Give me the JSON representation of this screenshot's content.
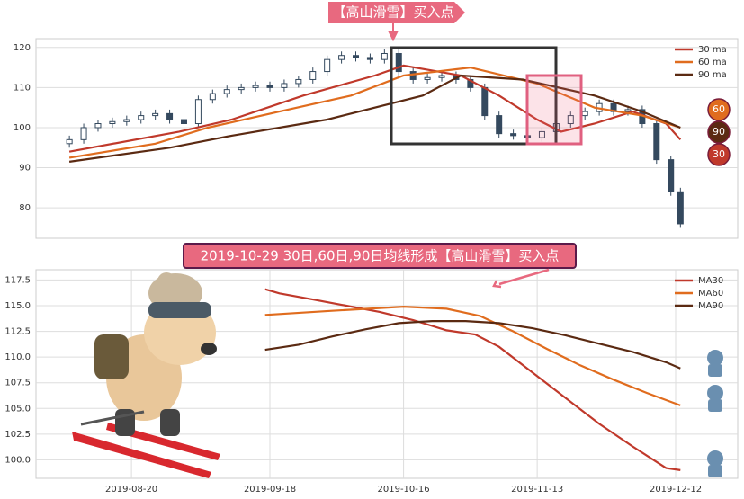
{
  "chart_data": [
    {
      "type": "candlestick",
      "annotation": "【高山滑雪】买入点",
      "xlim": [
        "2019-07-31",
        "2019-12-25"
      ],
      "ylim": [
        72.4,
        122.2
      ],
      "yticks": [
        80,
        90,
        100,
        110,
        120
      ],
      "grid": true,
      "legend": "upper right",
      "candle_color": "#34495e",
      "x": [
        "2019-08-07",
        "2019-08-10",
        "2019-08-13",
        "2019-08-16",
        "2019-08-19",
        "2019-08-22",
        "2019-08-25",
        "2019-08-28",
        "2019-08-31",
        "2019-09-03",
        "2019-09-06",
        "2019-09-09",
        "2019-09-12",
        "2019-09-15",
        "2019-09-18",
        "2019-09-21",
        "2019-09-24",
        "2019-09-27",
        "2019-09-30",
        "2019-10-03",
        "2019-10-06",
        "2019-10-09",
        "2019-10-12",
        "2019-10-15",
        "2019-10-18",
        "2019-10-21",
        "2019-10-24",
        "2019-10-27",
        "2019-10-30",
        "2019-11-02",
        "2019-11-05",
        "2019-11-08",
        "2019-11-11",
        "2019-11-14",
        "2019-11-17",
        "2019-11-20",
        "2019-11-23",
        "2019-11-26",
        "2019-11-29",
        "2019-12-02",
        "2019-12-05",
        "2019-12-08",
        "2019-12-11",
        "2019-12-13"
      ],
      "open": [
        96,
        97,
        100,
        101,
        101.5,
        102,
        103,
        103.5,
        102,
        101,
        107,
        108.5,
        109.5,
        110,
        110.5,
        110,
        111,
        112,
        114,
        117,
        118,
        117.5,
        117,
        118.5,
        114,
        112,
        112.5,
        113,
        112,
        110,
        103,
        98.5,
        98,
        97.5,
        99,
        101,
        103,
        104,
        106,
        104,
        104.5,
        101,
        92,
        84
      ],
      "high": [
        98,
        101,
        102,
        102.5,
        103,
        104,
        104.5,
        104.5,
        103,
        108,
        109.5,
        110.5,
        111,
        111.5,
        111.5,
        112,
        113,
        115,
        118,
        119,
        119,
        118.5,
        119.5,
        119.5,
        115,
        113.5,
        114,
        114,
        113,
        111,
        104,
        99.5,
        99,
        100,
        102,
        104,
        105,
        107,
        107,
        105.5,
        105.5,
        102,
        93,
        85
      ],
      "low": [
        95,
        96,
        99,
        100,
        100.5,
        101,
        102,
        101,
        100,
        100,
        106,
        107.5,
        108.5,
        109,
        109,
        109,
        110,
        111,
        113,
        116,
        116.5,
        116,
        116,
        113,
        111,
        111,
        111.5,
        111,
        109,
        102,
        97.5,
        97,
        96.5,
        96.5,
        98,
        100,
        102,
        103,
        103,
        103,
        100,
        91,
        83,
        75
      ],
      "close": [
        97,
        100,
        101,
        101.5,
        102,
        103,
        103.5,
        102,
        101,
        107,
        108.5,
        109.5,
        110,
        110.5,
        110,
        111,
        112,
        114,
        117,
        118,
        117.5,
        117,
        118.5,
        114,
        112,
        112.5,
        113,
        112,
        110,
        103,
        98.5,
        98,
        97.5,
        99,
        101,
        103,
        104,
        106,
        104,
        104.5,
        101,
        92,
        84,
        76
      ],
      "series": [
        {
          "name": "30 ma",
          "color": "#c0392b",
          "x": [
            "2019-08-07",
            "2019-08-30",
            "2019-09-10",
            "2019-09-25",
            "2019-10-10",
            "2019-10-16",
            "2019-10-28",
            "2019-11-05",
            "2019-11-13",
            "2019-11-18",
            "2019-11-25",
            "2019-12-03",
            "2019-12-10",
            "2019-12-13"
          ],
          "values": [
            94,
            99,
            102,
            108,
            113,
            115.5,
            113,
            108,
            102,
            99,
            101,
            104,
            101,
            97
          ]
        },
        {
          "name": "60 ma",
          "color": "#e06c1e",
          "x": [
            "2019-08-07",
            "2019-08-25",
            "2019-09-05",
            "2019-09-20",
            "2019-10-05",
            "2019-10-16",
            "2019-10-30",
            "2019-11-13",
            "2019-11-25",
            "2019-12-05",
            "2019-12-13"
          ],
          "values": [
            92.5,
            96,
            100,
            104,
            108,
            113,
            115,
            111,
            105,
            103,
            100
          ]
        },
        {
          "name": "90 ma",
          "color": "#5b2a12",
          "x": [
            "2019-08-07",
            "2019-08-28",
            "2019-09-10",
            "2019-09-30",
            "2019-10-20",
            "2019-10-28",
            "2019-11-10",
            "2019-11-25",
            "2019-12-05",
            "2019-12-13"
          ],
          "values": [
            91.5,
            95,
            98,
            102,
            108,
            113,
            112,
            108,
            104,
            100
          ]
        }
      ],
      "end_labels": [
        {
          "text": "60",
          "color": "#e06c1e"
        },
        {
          "text": "90",
          "color": "#5b2a12"
        },
        {
          "text": "30",
          "color": "#c0392b"
        }
      ]
    },
    {
      "type": "line",
      "annotation": "2019-10-29 30日,60日,90日均线形成【高山滑雪】买入点",
      "xlim": [
        "2019-07-31",
        "2019-12-25"
      ],
      "xticks": [
        "2019-08-20",
        "2019-09-18",
        "2019-10-16",
        "2019-11-13",
        "2019-12-12"
      ],
      "ylim": [
        98.2,
        118.5
      ],
      "yticks": [
        {
          "value": 100,
          "label": "100.0"
        },
        {
          "value": 102.5,
          "label": "102.5"
        },
        {
          "value": 105,
          "label": "105.0"
        },
        {
          "value": 107.5,
          "label": "107.5"
        },
        {
          "value": 110,
          "label": "110.0"
        },
        {
          "value": 112.5,
          "label": "112.5"
        },
        {
          "value": 115,
          "label": "115.0"
        },
        {
          "value": 117.5,
          "label": "117.5"
        }
      ],
      "grid": true,
      "legend": "upper right",
      "series": [
        {
          "name": "MA30",
          "color": "#c0392b",
          "x": [
            "2019-09-17",
            "2019-09-20",
            "2019-09-27",
            "2019-10-04",
            "2019-10-11",
            "2019-10-18",
            "2019-10-25",
            "2019-10-31",
            "2019-11-05",
            "2019-11-12",
            "2019-11-19",
            "2019-11-26",
            "2019-12-03",
            "2019-12-10",
            "2019-12-13"
          ],
          "values": [
            116.6,
            116.2,
            115.6,
            115.0,
            114.4,
            113.6,
            112.6,
            112.2,
            111.0,
            108.5,
            106.0,
            103.5,
            101.3,
            99.2,
            99.0
          ]
        },
        {
          "name": "MA60",
          "color": "#e06c1e",
          "x": [
            "2019-09-17",
            "2019-10-01",
            "2019-10-16",
            "2019-10-25",
            "2019-11-01",
            "2019-11-08",
            "2019-11-15",
            "2019-11-22",
            "2019-11-29",
            "2019-12-06",
            "2019-12-13"
          ],
          "values": [
            114.1,
            114.5,
            114.9,
            114.7,
            114.0,
            112.5,
            110.8,
            109.2,
            107.8,
            106.5,
            105.3
          ]
        },
        {
          "name": "MA90",
          "color": "#5b2a12",
          "x": [
            "2019-09-17",
            "2019-09-24",
            "2019-10-01",
            "2019-10-08",
            "2019-10-15",
            "2019-10-22",
            "2019-10-29",
            "2019-11-05",
            "2019-11-12",
            "2019-11-19",
            "2019-11-26",
            "2019-12-03",
            "2019-12-10",
            "2019-12-13"
          ],
          "values": [
            110.7,
            111.2,
            112.0,
            112.7,
            113.3,
            113.5,
            113.5,
            113.3,
            112.8,
            112.1,
            111.3,
            110.5,
            109.5,
            108.9
          ]
        }
      ]
    }
  ]
}
